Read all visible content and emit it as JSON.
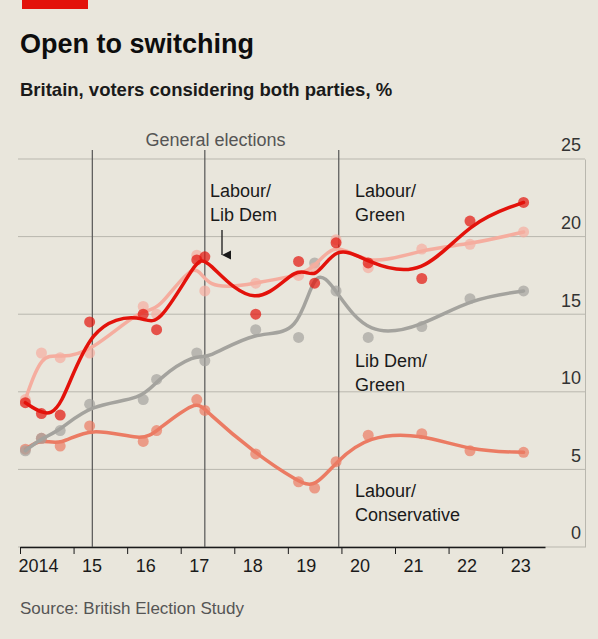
{
  "chart_data": {
    "type": "line",
    "title": "Open to switching",
    "subtitle": "Britain, voters considering both parties, %",
    "source": "Source: British Election Study",
    "general_elections": {
      "label": "General elections",
      "x": [
        2015.35,
        2017.45,
        2019.95
      ]
    },
    "x": [
      2014.1,
      2014.4,
      2014.75,
      2015.3,
      2016.3,
      2016.55,
      2017.3,
      2017.45,
      2018.4,
      2019.2,
      2019.5,
      2019.9,
      2020.5,
      2021.5,
      2022.4,
      2023.4
    ],
    "series": [
      {
        "name": "Labour/Conservative",
        "color": "#eb7b63",
        "marker": "circle",
        "line_style": "smooth",
        "values": [
          6.3,
          7.0,
          6.5,
          7.8,
          6.8,
          7.5,
          9.5,
          8.8,
          6.0,
          4.2,
          3.8,
          5.5,
          7.2,
          7.3,
          6.2,
          6.1
        ]
      },
      {
        "name": "Lib Dem/Green",
        "color": "#a4a39e",
        "marker": "circle",
        "line_style": "smooth",
        "values": [
          6.2,
          7.0,
          7.5,
          9.2,
          9.5,
          10.8,
          12.5,
          12.0,
          14.0,
          13.5,
          18.3,
          16.5,
          13.5,
          14.2,
          16.0,
          16.5
        ]
      },
      {
        "name": "Labour/Lib Dem",
        "color": "#f5ad9f",
        "marker": "circle",
        "line_style": "smooth",
        "values": [
          9.5,
          12.5,
          12.2,
          12.5,
          15.5,
          15.0,
          18.8,
          16.5,
          17.0,
          17.5,
          18.0,
          19.8,
          18.0,
          19.2,
          19.5,
          20.3
        ]
      },
      {
        "name": "Labour/Green",
        "color": "#e3120b",
        "marker": "circle",
        "line_style": "smooth",
        "values": [
          9.3,
          8.6,
          8.5,
          14.5,
          15.0,
          14.0,
          18.5,
          18.7,
          15.0,
          18.4,
          17.0,
          19.6,
          18.3,
          17.3,
          21.0,
          22.2
        ]
      }
    ],
    "xlim": [
      2014,
      2023.8
    ],
    "xticks": [
      2014,
      {
        "value": 2015,
        "label": "15"
      },
      {
        "value": 2016,
        "label": "16"
      },
      {
        "value": 2017,
        "label": "17"
      },
      {
        "value": 2018,
        "label": "18"
      },
      {
        "value": 2019,
        "label": "19"
      },
      {
        "value": 2020,
        "label": "20"
      },
      {
        "value": 2021,
        "label": "21"
      },
      {
        "value": 2022,
        "label": "22"
      },
      {
        "value": 2023,
        "label": "23"
      }
    ],
    "ylim": [
      0,
      25
    ],
    "yticks": [
      0,
      5,
      10,
      15,
      20,
      25
    ],
    "grid": true
  }
}
